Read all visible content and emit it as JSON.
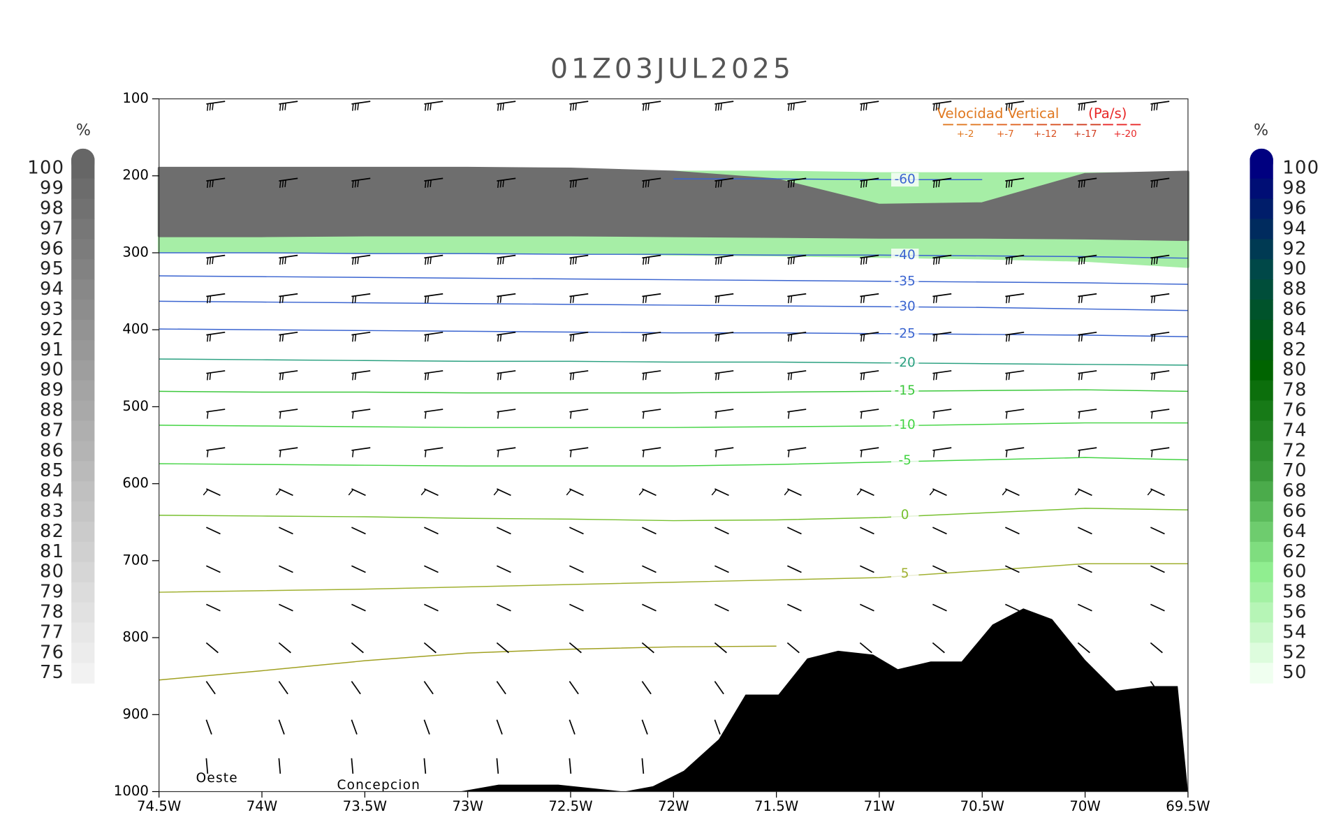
{
  "chart_data": {
    "type": "cross-section",
    "title": "01Z03JUL2025",
    "xlim": [
      74.5,
      69.5
    ],
    "ylim": [
      1000,
      100
    ],
    "xticks": [
      {
        "value": 74.5,
        "label": "74.5W"
      },
      {
        "value": 74,
        "label": "74W"
      },
      {
        "value": 73.5,
        "label": "73.5W"
      },
      {
        "value": 73,
        "label": "73W"
      },
      {
        "value": 72.5,
        "label": "72.5W"
      },
      {
        "value": 72,
        "label": "72W"
      },
      {
        "value": 71.5,
        "label": "71.5W"
      },
      {
        "value": 71,
        "label": "71W"
      },
      {
        "value": 70.5,
        "label": "70.5W"
      },
      {
        "value": 70,
        "label": "70W"
      },
      {
        "value": 69.5,
        "label": "69.5W"
      }
    ],
    "yticks": [
      100,
      200,
      300,
      400,
      500,
      600,
      700,
      800,
      900,
      1000
    ],
    "x": [
      74.5,
      74,
      73.5,
      73,
      72.5,
      72,
      71.5,
      71,
      70.5,
      70,
      69.5
    ],
    "areas": [
      {
        "color": "#a6eea6",
        "top": [
          195,
          195,
          195,
          195,
          195,
          195,
          195,
          197,
          197,
          197,
          197
        ],
        "bottom": [
          298,
          299,
          299,
          300,
          300,
          302,
          303,
          305,
          307,
          310,
          318
        ]
      },
      {
        "color": "#6e6e6e",
        "top": [
          190,
          190,
          190,
          190,
          191,
          195,
          205,
          238,
          236,
          198,
          195
        ],
        "bottom": [
          278,
          278,
          277,
          277,
          277,
          278,
          279,
          280,
          280,
          281,
          283
        ]
      }
    ],
    "contours": [
      {
        "level": -60,
        "color": "#3a64d0",
        "values": [
          null,
          null,
          null,
          null,
          null,
          204,
          204,
          205,
          205,
          null,
          null
        ]
      },
      {
        "level": -40,
        "color": "#3a64d0",
        "values": [
          300,
          300,
          301,
          301,
          302,
          302,
          303,
          303,
          304,
          305,
          307
        ]
      },
      {
        "level": -35,
        "color": "#3a64d0",
        "values": [
          330,
          331,
          332,
          333,
          334,
          335,
          336,
          337,
          338,
          339,
          341
        ]
      },
      {
        "level": -30,
        "color": "#3a64d0",
        "values": [
          363,
          364,
          365,
          366,
          367,
          368,
          369,
          370,
          371,
          373,
          375
        ]
      },
      {
        "level": -25,
        "color": "#3a64d0",
        "values": [
          399,
          400,
          401,
          402,
          403,
          404,
          404,
          405,
          406,
          407,
          409
        ]
      },
      {
        "level": -20,
        "color": "#2aa080",
        "values": [
          438,
          439,
          440,
          441,
          441,
          442,
          442,
          443,
          444,
          445,
          446
        ]
      },
      {
        "level": -15,
        "color": "#3cc83c",
        "values": [
          480,
          481,
          481,
          482,
          482,
          482,
          481,
          480,
          479,
          478,
          480
        ]
      },
      {
        "level": -10,
        "color": "#44d444",
        "values": [
          524,
          525,
          526,
          527,
          527,
          527,
          526,
          525,
          523,
          521,
          521
        ]
      },
      {
        "level": -5,
        "color": "#44d444",
        "values": [
          574,
          575,
          576,
          577,
          577,
          577,
          575,
          572,
          569,
          566,
          569
        ]
      },
      {
        "level": 0,
        "color": "#78c030",
        "values": [
          641,
          642,
          643,
          645,
          646,
          648,
          647,
          644,
          638,
          632,
          634
        ]
      },
      {
        "level": 5,
        "color": "#a0b030",
        "values": [
          741,
          739,
          737,
          734,
          731,
          728,
          725,
          722,
          713,
          704,
          704
        ]
      },
      {
        "color": "#a0a020",
        "values": [
          855,
          843,
          830,
          820,
          815,
          812,
          811,
          null,
          null,
          null,
          null
        ]
      }
    ],
    "terrain": {
      "color": "#000000",
      "x": [
        73.04,
        72.85,
        72.56,
        72.24,
        72.1,
        71.95,
        71.78,
        71.65,
        71.49,
        71.35,
        71.2,
        71.03,
        70.91,
        70.75,
        70.6,
        70.45,
        70.3,
        70.16,
        70.0,
        69.85,
        69.68,
        69.55,
        69.5
      ],
      "values": [
        1000,
        991,
        991,
        1000,
        993,
        973,
        932,
        874,
        874,
        827,
        817,
        822,
        841,
        831,
        831,
        783,
        762,
        776,
        829,
        869,
        863,
        863,
        1000
      ]
    },
    "annotations": [
      "Oeste",
      "Concepcion"
    ],
    "left_colorbar": {
      "unit": "%",
      "labels": [
        100,
        99,
        98,
        97,
        96,
        95,
        94,
        93,
        92,
        91,
        90,
        89,
        88,
        87,
        86,
        85,
        84,
        83,
        82,
        81,
        80,
        79,
        78,
        77,
        76,
        75
      ],
      "colors": [
        "#666666",
        "#f2f2f2"
      ]
    },
    "right_colorbar": {
      "unit": "%",
      "labels": [
        100,
        98,
        96,
        94,
        92,
        90,
        88,
        86,
        84,
        82,
        80,
        78,
        76,
        74,
        72,
        70,
        68,
        66,
        64,
        62,
        60,
        58,
        56,
        54,
        52,
        50
      ],
      "colors": [
        "#000080",
        "#004848",
        "#006400",
        "#3a9a3a",
        "#90ee90",
        "#f0fff0"
      ]
    },
    "legend": {
      "title": "Velocidad Vertical",
      "unit": "(Pa/s)",
      "labels": [
        "+-2",
        "+-7",
        "+-12",
        "+-17",
        "+-20"
      ],
      "colors": [
        "#e07820",
        "#e06420",
        "#d85020",
        "#d03c20",
        "#e82828"
      ]
    }
  }
}
